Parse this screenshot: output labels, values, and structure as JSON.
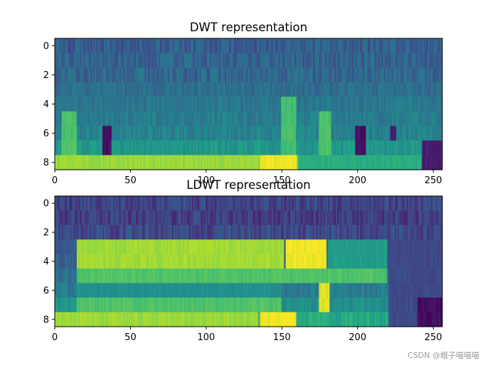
{
  "chart_data": [
    {
      "type": "heatmap",
      "title": "DWT representation",
      "xlabel": "",
      "ylabel": "",
      "xlim": [
        0,
        256
      ],
      "ylim": [
        8.5,
        -0.5
      ],
      "x_ticks": [
        0,
        50,
        100,
        150,
        200,
        250
      ],
      "y_ticks": [
        0,
        2,
        4,
        6,
        8
      ],
      "rows": 9,
      "cols": 256,
      "colormap": "viridis",
      "grid": false,
      "row_profile": [
        0.3,
        0.31,
        0.33,
        0.36,
        0.4,
        0.42,
        0.45,
        0.53,
        0.82
      ],
      "features": [
        {
          "rows": [
            5,
            7
          ],
          "x": [
            5,
            15
          ],
          "value": 0.72
        },
        {
          "rows": [
            6,
            7
          ],
          "x": [
            32,
            38
          ],
          "value": 0.05
        },
        {
          "rows": [
            8,
            8
          ],
          "x": [
            0,
            135
          ],
          "value": 0.85
        },
        {
          "rows": [
            8,
            8
          ],
          "x": [
            136,
            160
          ],
          "value": 0.98
        },
        {
          "rows": [
            8,
            8
          ],
          "x": [
            161,
            256
          ],
          "value": 0.62
        },
        {
          "rows": [
            4,
            7
          ],
          "x": [
            150,
            160
          ],
          "value": 0.7
        },
        {
          "rows": [
            5,
            7
          ],
          "x": [
            175,
            183
          ],
          "value": 0.72
        },
        {
          "rows": [
            6,
            7
          ],
          "x": [
            199,
            206
          ],
          "value": 0.05
        },
        {
          "rows": [
            6,
            6
          ],
          "x": [
            222,
            226
          ],
          "value": 0.08
        },
        {
          "rows": [
            7,
            8
          ],
          "x": [
            243,
            256
          ],
          "value": 0.08
        }
      ]
    },
    {
      "type": "heatmap",
      "title": "LDWT representation",
      "xlabel": "",
      "ylabel": "",
      "xlim": [
        0,
        256
      ],
      "ylim": [
        8.5,
        -0.5
      ],
      "x_ticks": [
        0,
        50,
        100,
        150,
        200,
        250
      ],
      "y_ticks": [
        0,
        2,
        4,
        6,
        8
      ],
      "rows": 9,
      "cols": 256,
      "colormap": "viridis",
      "grid": false,
      "row_profile": [
        0.2,
        0.18,
        0.22,
        0.3,
        0.32,
        0.36,
        0.42,
        0.5,
        0.6
      ],
      "features": [
        {
          "rows": [
            3,
            4
          ],
          "x": [
            15,
            152
          ],
          "value": 0.86
        },
        {
          "rows": [
            3,
            4
          ],
          "x": [
            153,
            180
          ],
          "value": 0.98
        },
        {
          "rows": [
            3,
            4
          ],
          "x": [
            181,
            220
          ],
          "value": 0.55
        },
        {
          "rows": [
            5,
            5
          ],
          "x": [
            15,
            220
          ],
          "value": 0.72
        },
        {
          "rows": [
            6,
            6
          ],
          "x": [
            15,
            150
          ],
          "value": 0.5
        },
        {
          "rows": [
            7,
            7
          ],
          "x": [
            15,
            150
          ],
          "value": 0.72
        },
        {
          "rows": [
            8,
            8
          ],
          "x": [
            0,
            135
          ],
          "value": 0.85
        },
        {
          "rows": [
            8,
            8
          ],
          "x": [
            136,
            160
          ],
          "value": 0.98
        },
        {
          "rows": [
            6,
            7
          ],
          "x": [
            175,
            182
          ],
          "value": 0.95
        },
        {
          "rows": [
            3,
            8
          ],
          "x": [
            221,
            256
          ],
          "value": 0.22
        },
        {
          "rows": [
            7,
            8
          ],
          "x": [
            240,
            256
          ],
          "value": 0.04
        }
      ]
    }
  ],
  "watermark": "CSDN @蛾子喵喵喵"
}
